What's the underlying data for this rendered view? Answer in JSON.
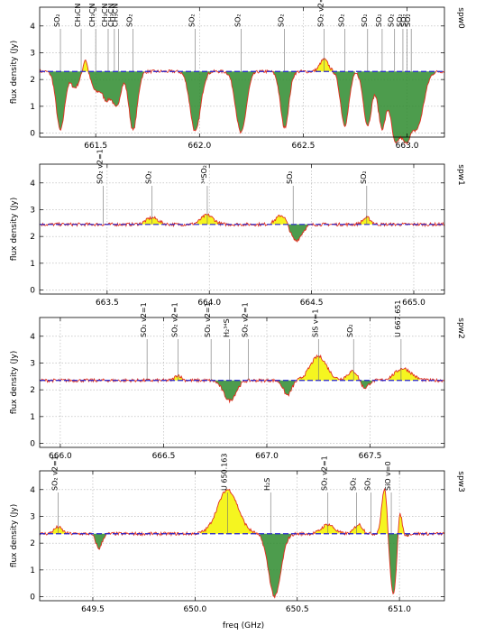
{
  "xlabel": "freq (GHz)",
  "chart_data": [
    {
      "type": "line",
      "panel": "spw0",
      "ylabel": "flux density (Jy)",
      "xlim": [
        661.23,
        663.18
      ],
      "ylim": [
        -0.15,
        4.7
      ],
      "xticks": [
        661.5,
        662.0,
        662.5,
        663.0
      ],
      "xtick_labels": [
        "661.5",
        "662.0",
        "662.5",
        "663.0"
      ],
      "yticks": [
        0,
        1,
        2,
        3,
        4
      ],
      "ytick_labels": [
        "0",
        "1",
        "2",
        "3",
        "4"
      ],
      "continuum": 2.3,
      "line_markers": [
        {
          "freq": 661.33,
          "label": "SO₂"
        },
        {
          "freq": 661.43,
          "label": "CH₃CN"
        },
        {
          "freq": 661.5,
          "label": "CH₃CN"
        },
        {
          "freq": 661.56,
          "label": "CH₃CN"
        },
        {
          "freq": 661.59,
          "label": "CH₃CN"
        },
        {
          "freq": 661.61,
          "label": "CH₃CN"
        },
        {
          "freq": 661.68,
          "label": "SO₂"
        },
        {
          "freq": 661.98,
          "label": "SO₂"
        },
        {
          "freq": 662.2,
          "label": "SO₂"
        },
        {
          "freq": 662.41,
          "label": "SO₂"
        },
        {
          "freq": 662.6,
          "label": "SO₂ v2=1"
        },
        {
          "freq": 662.7,
          "label": "SO₂"
        },
        {
          "freq": 662.81,
          "label": "SO₂"
        },
        {
          "freq": 662.88,
          "label": "SO₂"
        },
        {
          "freq": 662.94,
          "label": "SO₂"
        },
        {
          "freq": 662.98,
          "label": "SO₂"
        },
        {
          "freq": 663.0,
          "label": "SO₂"
        },
        {
          "freq": 663.02,
          "label": "SO₂"
        }
      ],
      "features": [
        {
          "freq": 661.33,
          "peak": 0.1,
          "width": 0.02
        },
        {
          "freq": 661.4,
          "peak": 1.7,
          "width": 0.02
        },
        {
          "freq": 661.45,
          "peak": 2.8,
          "width": 0.01
        },
        {
          "freq": 661.5,
          "peak": 1.6,
          "width": 0.02
        },
        {
          "freq": 661.55,
          "peak": 1.3,
          "width": 0.02
        },
        {
          "freq": 661.6,
          "peak": 1.0,
          "width": 0.02
        },
        {
          "freq": 661.68,
          "peak": 0.1,
          "width": 0.02
        },
        {
          "freq": 661.98,
          "peak": 0.05,
          "width": 0.025
        },
        {
          "freq": 662.2,
          "peak": 0.0,
          "width": 0.025
        },
        {
          "freq": 662.41,
          "peak": 0.2,
          "width": 0.02
        },
        {
          "freq": 662.6,
          "peak": 2.75,
          "width": 0.02
        },
        {
          "freq": 662.7,
          "peak": 0.3,
          "width": 0.02
        },
        {
          "freq": 662.81,
          "peak": 0.3,
          "width": 0.02
        },
        {
          "freq": 662.88,
          "peak": 0.2,
          "width": 0.02
        },
        {
          "freq": 662.94,
          "peak": 0.0,
          "width": 0.02
        },
        {
          "freq": 662.99,
          "peak": 0.0,
          "width": 0.025
        },
        {
          "freq": 663.05,
          "peak": 0.3,
          "width": 0.03
        }
      ]
    },
    {
      "type": "line",
      "panel": "spw1",
      "ylabel": "flux density (Jy)",
      "xlim": [
        663.17,
        665.15
      ],
      "ylim": [
        -0.15,
        4.7
      ],
      "xticks": [
        663.5,
        664.0,
        664.5,
        665.0
      ],
      "xtick_labels": [
        "663.5",
        "664.0",
        "664.5",
        "665.0"
      ],
      "yticks": [
        0,
        1,
        2,
        3,
        4
      ],
      "ytick_labels": [
        "0",
        "1",
        "2",
        "3",
        "4"
      ],
      "continuum": 2.45,
      "line_markers": [
        {
          "freq": 663.48,
          "label": "SO₂ v2=1"
        },
        {
          "freq": 663.72,
          "label": "SO₂"
        },
        {
          "freq": 663.99,
          "label": "³⁴SO₂"
        },
        {
          "freq": 664.41,
          "label": "SO₂"
        },
        {
          "freq": 664.77,
          "label": "SO₂"
        }
      ],
      "features": [
        {
          "freq": 663.72,
          "peak": 2.7,
          "width": 0.03
        },
        {
          "freq": 663.99,
          "peak": 2.8,
          "width": 0.03
        },
        {
          "freq": 664.36,
          "peak": 2.85,
          "width": 0.03
        },
        {
          "freq": 664.42,
          "peak": 1.8,
          "width": 0.03
        },
        {
          "freq": 664.77,
          "peak": 2.7,
          "width": 0.02
        }
      ]
    },
    {
      "type": "line",
      "panel": "spw2",
      "ylabel": "flux density (Jy)",
      "xlim": [
        665.9,
        667.86
      ],
      "ylim": [
        -0.15,
        4.7
      ],
      "xticks": [
        666.0,
        666.5,
        667.0,
        667.5
      ],
      "xtick_labels": [
        "666.0",
        "666.5",
        "667.0",
        "667.5"
      ],
      "yticks": [
        0,
        1,
        2,
        3,
        4
      ],
      "ytick_labels": [
        "0",
        "1",
        "2",
        "3",
        "4"
      ],
      "continuum": 2.35,
      "line_markers": [
        {
          "freq": 666.42,
          "label": "SO₂ v2=1"
        },
        {
          "freq": 666.57,
          "label": "SO₂ v2=1"
        },
        {
          "freq": 666.73,
          "label": "SO₂ v2=1"
        },
        {
          "freq": 666.82,
          "label": "H₂³⁴S"
        },
        {
          "freq": 666.91,
          "label": "SO₂ v2=1"
        },
        {
          "freq": 667.25,
          "label": "SiS v=1"
        },
        {
          "freq": 667.42,
          "label": "SO₂"
        },
        {
          "freq": 667.65,
          "label": "U 667.651"
        }
      ],
      "features": [
        {
          "freq": 666.57,
          "peak": 2.55,
          "width": 0.015
        },
        {
          "freq": 666.82,
          "peak": 1.6,
          "width": 0.03
        },
        {
          "freq": 667.1,
          "peak": 1.8,
          "width": 0.02
        },
        {
          "freq": 667.25,
          "peak": 3.25,
          "width": 0.04
        },
        {
          "freq": 667.42,
          "peak": 2.7,
          "width": 0.03
        },
        {
          "freq": 667.47,
          "peak": 2.0,
          "width": 0.02
        },
        {
          "freq": 667.66,
          "peak": 2.8,
          "width": 0.04
        }
      ]
    },
    {
      "type": "line",
      "panel": "spw3",
      "ylabel": "flux density (Jy)",
      "xlim": [
        649.24,
        651.22
      ],
      "ylim": [
        -0.15,
        4.7
      ],
      "xticks": [
        649.5,
        650.0,
        650.5,
        651.0
      ],
      "xtick_labels": [
        "649.5",
        "650.0",
        "650.5",
        "651.0"
      ],
      "yticks": [
        0,
        1,
        2,
        3,
        4
      ],
      "ytick_labels": [
        "0",
        "1",
        "2",
        "3",
        "4"
      ],
      "continuum": 2.35,
      "line_markers": [
        {
          "freq": 649.33,
          "label": "SO₂ v2=1"
        },
        {
          "freq": 650.16,
          "label": "U 650.163"
        },
        {
          "freq": 650.37,
          "label": "H₂S"
        },
        {
          "freq": 650.65,
          "label": "SO₂ v2=1"
        },
        {
          "freq": 650.79,
          "label": "SO₂"
        },
        {
          "freq": 650.86,
          "label": "SO₂"
        },
        {
          "freq": 650.96,
          "label": "SiO v=0"
        }
      ],
      "features": [
        {
          "freq": 649.33,
          "peak": 2.6,
          "width": 0.02
        },
        {
          "freq": 649.53,
          "peak": 1.8,
          "width": 0.015
        },
        {
          "freq": 650.16,
          "peak": 4.0,
          "width": 0.05
        },
        {
          "freq": 650.39,
          "peak": 0.0,
          "width": 0.03
        },
        {
          "freq": 650.65,
          "peak": 2.7,
          "width": 0.03
        },
        {
          "freq": 650.8,
          "peak": 2.7,
          "width": 0.02
        },
        {
          "freq": 650.93,
          "peak": 4.6,
          "width": 0.015
        },
        {
          "freq": 650.97,
          "peak": 0.0,
          "width": 0.025
        },
        {
          "freq": 651.0,
          "peak": 4.1,
          "width": 0.012
        }
      ]
    }
  ]
}
